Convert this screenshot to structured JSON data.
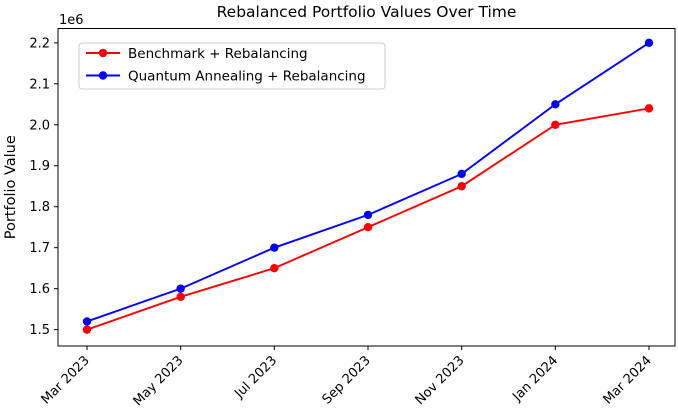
{
  "figure": {
    "background": "#ffffff",
    "text_color": "#000000",
    "spine_color": "#000000",
    "legend_border_color": "#cccccc"
  },
  "chart_data": {
    "type": "line",
    "title": "Rebalanced Portfolio Values Over Time",
    "xlabel": "",
    "ylabel": "Portfolio Value",
    "y_offset_label": "1e6",
    "categories": [
      "Mar 2023",
      "May 2023",
      "Jul 2023",
      "Sep 2023",
      "Nov 2023",
      "Jan 2024",
      "Mar 2024"
    ],
    "series": [
      {
        "name": "Benchmark + Rebalancing",
        "color": "#ff0000",
        "marker": "circle",
        "values": [
          1500000,
          1580000,
          1650000,
          1750000,
          1850000,
          2000000,
          2040000
        ]
      },
      {
        "name": "Quantum Annealing + Rebalancing",
        "color": "#0000ff",
        "marker": "circle",
        "values": [
          1520000,
          1600000,
          1700000,
          1780000,
          1880000,
          2050000,
          2200000
        ]
      }
    ],
    "yticks": [
      1500000,
      1600000,
      1700000,
      1800000,
      1900000,
      2000000,
      2100000,
      2200000
    ],
    "ytick_labels": [
      "1.5",
      "1.6",
      "1.7",
      "1.8",
      "1.9",
      "2.0",
      "2.1",
      "2.2"
    ],
    "ylim": [
      1460000,
      2235000
    ],
    "grid": false,
    "legend_position": "upper left",
    "x_tick_rotation": 45
  }
}
